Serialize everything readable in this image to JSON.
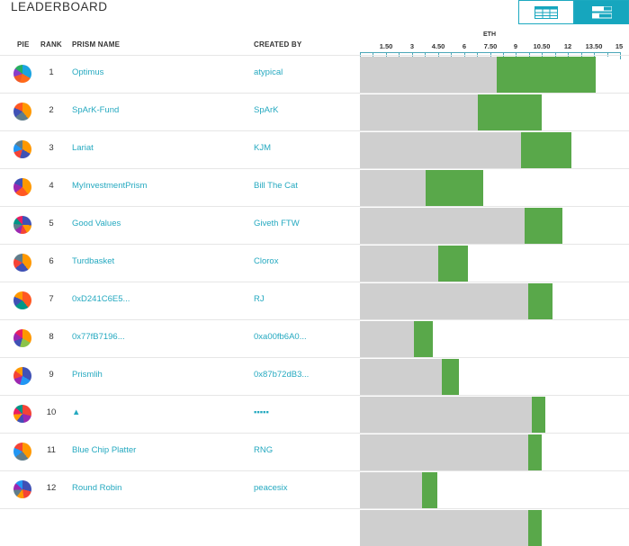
{
  "title": "LEADERBOARD",
  "view_toggle": {
    "table_icon": "table-icon",
    "bars_icon": "bars-icon"
  },
  "columns": {
    "pie": "PIE",
    "rank": "RANK",
    "prism_name": "PRISM NAME",
    "created_by": "CREATED BY"
  },
  "axis": {
    "unit_label": "ETH",
    "ticks": [
      "1.50",
      "3",
      "4.50",
      "6",
      "7.50",
      "9",
      "10.50",
      "12",
      "13.50",
      "15"
    ],
    "range": [
      0,
      15
    ]
  },
  "colors": {
    "link": "#25a9c0",
    "gray_bar": "#cfcfcf",
    "green_bar": "#59a84a",
    "accent": "#16a6be"
  },
  "rows": [
    {
      "rank": "1",
      "name": "Optimus",
      "creator": "atypical",
      "gray": 7.9,
      "green_end": 13.6,
      "pie": [
        "#1aa3e0",
        "#ff6a1a",
        "#f05a28",
        "#8a3cc9",
        "#27ae60"
      ]
    },
    {
      "rank": "2",
      "name": "SpArK-Fund",
      "creator": "SpArK",
      "gray": 6.8,
      "green_end": 10.5,
      "pie": [
        "#ff9800",
        "#607d8b",
        "#3f51b5",
        "#ff5722"
      ]
    },
    {
      "rank": "3",
      "name": "Lariat",
      "creator": "KJM",
      "gray": 9.3,
      "green_end": 12.2,
      "pie": [
        "#ff9800",
        "#3f51b5",
        "#f44336",
        "#2196f3",
        "#607d8b"
      ]
    },
    {
      "rank": "4",
      "name": "MyInvestmentPrism",
      "creator": "Bill The Cat",
      "gray": 3.8,
      "green_end": 7.1,
      "pie": [
        "#ff9800",
        "#ff5722",
        "#9c27b0",
        "#3f51b5"
      ]
    },
    {
      "rank": "5",
      "name": "Good Values",
      "creator": "Giveth FTW",
      "gray": 9.5,
      "green_end": 11.7,
      "pie": [
        "#3f51b5",
        "#ff9800",
        "#f44336",
        "#9c27b0",
        "#607d8b",
        "#009688",
        "#e91e63"
      ]
    },
    {
      "rank": "6",
      "name": "Turdbasket",
      "creator": "Clorox",
      "gray": 4.5,
      "green_end": 6.2,
      "pie": [
        "#ff9800",
        "#3f51b5",
        "#f44336",
        "#607d8b"
      ]
    },
    {
      "rank": "7",
      "name": "0xD241C6E5...",
      "creator": "RJ",
      "gray": 9.7,
      "green_end": 11.1,
      "pie": [
        "#ff5722",
        "#009688",
        "#3f51b5",
        "#ff9800"
      ]
    },
    {
      "rank": "8",
      "name": "0x77fB7196...",
      "creator": "0xa00fb6A0...",
      "gray": 3.1,
      "green_end": 4.2,
      "pie": [
        "#ff9800",
        "#8bc34a",
        "#3f51b5",
        "#9c27b0",
        "#e91e63"
      ]
    },
    {
      "rank": "9",
      "name": "Prismlih",
      "creator": "0x87b72dB3...",
      "gray": 4.7,
      "green_end": 5.7,
      "pie": [
        "#3f51b5",
        "#2196f3",
        "#9c27b0",
        "#f44336",
        "#ff9800"
      ]
    },
    {
      "rank": "10",
      "name": "▲",
      "creator": "▪▪▪▪▪",
      "gray": 9.9,
      "green_end": 10.7,
      "pie": [
        "#f44336",
        "#9c27b0",
        "#3f51b5",
        "#ff9800",
        "#e91e63",
        "#009688"
      ]
    },
    {
      "rank": "11",
      "name": "Blue Chip Platter",
      "creator": "RNG",
      "gray": 9.7,
      "green_end": 10.5,
      "pie": [
        "#ff9800",
        "#607d8b",
        "#2196f3",
        "#f44336"
      ]
    },
    {
      "rank": "12",
      "name": "Round Robin",
      "creator": "peacesix",
      "gray": 3.6,
      "green_end": 4.5,
      "pie": [
        "#3f51b5",
        "#f44336",
        "#ff9800",
        "#607d8b",
        "#9c27b0",
        "#2196f3"
      ]
    }
  ]
}
